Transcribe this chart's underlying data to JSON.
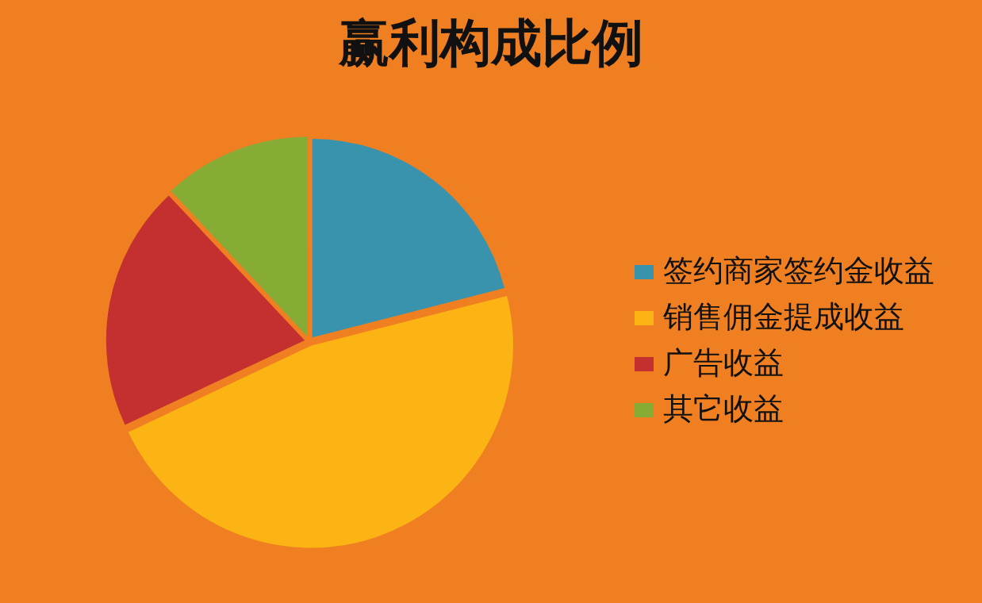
{
  "chart_data": {
    "type": "pie",
    "title": "赢利构成比例",
    "categories": [
      "签约商家签约金收益",
      "销售佣金提成收益",
      "广告收益",
      "其它收益"
    ],
    "values": [
      21,
      47,
      20,
      12
    ],
    "colors": [
      "#3a93ad",
      "#fcb414",
      "#c3302f",
      "#86ac35"
    ],
    "legend": "right"
  }
}
